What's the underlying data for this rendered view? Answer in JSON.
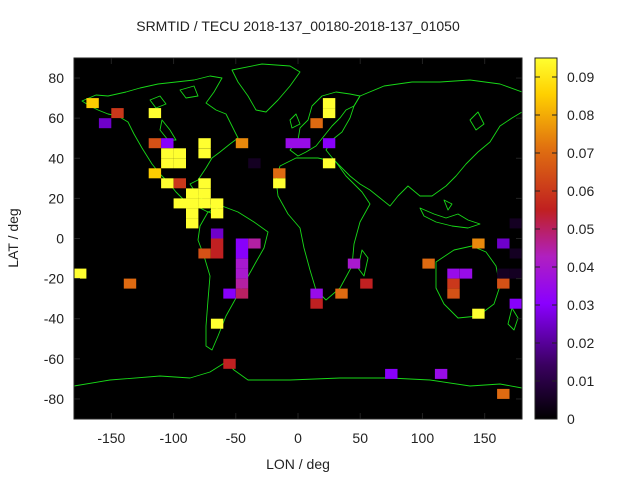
{
  "chart_data": {
    "type": "heatmap",
    "title": "SRMTID / TECU 2018-137_00180-2018-137_01050",
    "xlabel": "LON / deg",
    "ylabel": "LAT / deg",
    "xlim": [
      -180,
      180
    ],
    "ylim": [
      -90,
      90
    ],
    "x_ticks": [
      -150,
      -100,
      -50,
      0,
      50,
      100,
      150
    ],
    "y_ticks": [
      -80,
      -60,
      -40,
      -20,
      0,
      20,
      40,
      60,
      80
    ],
    "colorbar": {
      "min": 0,
      "max": 0.095,
      "ticks": [
        0,
        0.01,
        0.02,
        0.03,
        0.04,
        0.05,
        0.06,
        0.07,
        0.08,
        0.09
      ]
    },
    "cell_size_deg": [
      10,
      5
    ],
    "cells": [
      {
        "lon": -165,
        "lat": 67.5,
        "value": 0.085
      },
      {
        "lon": -145,
        "lat": 62.5,
        "value": 0.06
      },
      {
        "lon": -155,
        "lat": 57.5,
        "value": 0.025
      },
      {
        "lon": -115,
        "lat": 62.5,
        "value": 0.095
      },
      {
        "lon": -115,
        "lat": 47.5,
        "value": 0.065
      },
      {
        "lon": -105,
        "lat": 47.5,
        "value": 0.03
      },
      {
        "lon": -105,
        "lat": 42.5,
        "value": 0.095
      },
      {
        "lon": -105,
        "lat": 37.5,
        "value": 0.095
      },
      {
        "lon": -95,
        "lat": 42.5,
        "value": 0.095
      },
      {
        "lon": -95,
        "lat": 37.5,
        "value": 0.095
      },
      {
        "lon": -75,
        "lat": 47.5,
        "value": 0.095
      },
      {
        "lon": -75,
        "lat": 42.5,
        "value": 0.095
      },
      {
        "lon": -45,
        "lat": 47.5,
        "value": 0.075
      },
      {
        "lon": -35,
        "lat": 37.5,
        "value": 0.005
      },
      {
        "lon": -115,
        "lat": 32.5,
        "value": 0.085
      },
      {
        "lon": -105,
        "lat": 27.5,
        "value": 0.095
      },
      {
        "lon": -95,
        "lat": 27.5,
        "value": 0.06
      },
      {
        "lon": -85,
        "lat": 22.5,
        "value": 0.095
      },
      {
        "lon": -75,
        "lat": 27.5,
        "value": 0.095
      },
      {
        "lon": -75,
        "lat": 22.5,
        "value": 0.095
      },
      {
        "lon": -95,
        "lat": 17.5,
        "value": 0.095
      },
      {
        "lon": -85,
        "lat": 17.5,
        "value": 0.095
      },
      {
        "lon": -75,
        "lat": 17.5,
        "value": 0.095
      },
      {
        "lon": -65,
        "lat": 17.5,
        "value": 0.095
      },
      {
        "lon": -85,
        "lat": 12.5,
        "value": 0.095
      },
      {
        "lon": -65,
        "lat": 12.5,
        "value": 0.095
      },
      {
        "lon": -85,
        "lat": 7.5,
        "value": 0.095
      },
      {
        "lon": -65,
        "lat": 2.5,
        "value": 0.025
      },
      {
        "lon": -65,
        "lat": -2.5,
        "value": 0.055
      },
      {
        "lon": -65,
        "lat": -7.5,
        "value": 0.055
      },
      {
        "lon": -75,
        "lat": -7.5,
        "value": 0.065
      },
      {
        "lon": -45,
        "lat": -2.5,
        "value": 0.03
      },
      {
        "lon": -35,
        "lat": -2.5,
        "value": 0.045
      },
      {
        "lon": -45,
        "lat": -7.5,
        "value": 0.03
      },
      {
        "lon": -45,
        "lat": -12.5,
        "value": 0.04
      },
      {
        "lon": -45,
        "lat": -17.5,
        "value": 0.04
      },
      {
        "lon": -45,
        "lat": -22.5,
        "value": 0.045
      },
      {
        "lon": -45,
        "lat": -27.5,
        "value": 0.05
      },
      {
        "lon": -55,
        "lat": -27.5,
        "value": 0.03
      },
      {
        "lon": -65,
        "lat": -42.5,
        "value": 0.095
      },
      {
        "lon": -55,
        "lat": -62.5,
        "value": 0.055
      },
      {
        "lon": -175,
        "lat": -17.5,
        "value": 0.095
      },
      {
        "lon": -135,
        "lat": -22.5,
        "value": 0.07
      },
      {
        "lon": -15,
        "lat": 32.5,
        "value": 0.07
      },
      {
        "lon": -15,
        "lat": 27.5,
        "value": 0.095
      },
      {
        "lon": -5,
        "lat": 47.5,
        "value": 0.035
      },
      {
        "lon": 5,
        "lat": 47.5,
        "value": 0.035
      },
      {
        "lon": 15,
        "lat": 57.5,
        "value": 0.07
      },
      {
        "lon": 25,
        "lat": 67.5,
        "value": 0.095
      },
      {
        "lon": 25,
        "lat": 62.5,
        "value": 0.095
      },
      {
        "lon": 25,
        "lat": 47.5,
        "value": 0.03
      },
      {
        "lon": 25,
        "lat": 37.5,
        "value": 0.095
      },
      {
        "lon": 45,
        "lat": -12.5,
        "value": 0.04
      },
      {
        "lon": 55,
        "lat": -22.5,
        "value": 0.055
      },
      {
        "lon": 15,
        "lat": -27.5,
        "value": 0.035
      },
      {
        "lon": 15,
        "lat": -32.5,
        "value": 0.055
      },
      {
        "lon": 35,
        "lat": -27.5,
        "value": 0.07
      },
      {
        "lon": 75,
        "lat": -67.5,
        "value": 0.03
      },
      {
        "lon": 115,
        "lat": -67.5,
        "value": 0.035
      },
      {
        "lon": 105,
        "lat": -12.5,
        "value": 0.07
      },
      {
        "lon": 125,
        "lat": -17.5,
        "value": 0.035
      },
      {
        "lon": 135,
        "lat": -17.5,
        "value": 0.035
      },
      {
        "lon": 125,
        "lat": -22.5,
        "value": 0.06
      },
      {
        "lon": 125,
        "lat": -27.5,
        "value": 0.065
      },
      {
        "lon": 145,
        "lat": -2.5,
        "value": 0.075
      },
      {
        "lon": 165,
        "lat": -2.5,
        "value": 0.025
      },
      {
        "lon": 175,
        "lat": 7.5,
        "value": 0.005
      },
      {
        "lon": 175,
        "lat": -7.5,
        "value": 0.005
      },
      {
        "lon": 165,
        "lat": -17.5,
        "value": 0.005
      },
      {
        "lon": 175,
        "lat": -17.5,
        "value": 0.005
      },
      {
        "lon": 145,
        "lat": -37.5,
        "value": 0.095
      },
      {
        "lon": 165,
        "lat": -22.5,
        "value": 0.065
      },
      {
        "lon": 175,
        "lat": -32.5,
        "value": 0.03
      },
      {
        "lon": 165,
        "lat": -77.5,
        "value": 0.07
      }
    ]
  }
}
